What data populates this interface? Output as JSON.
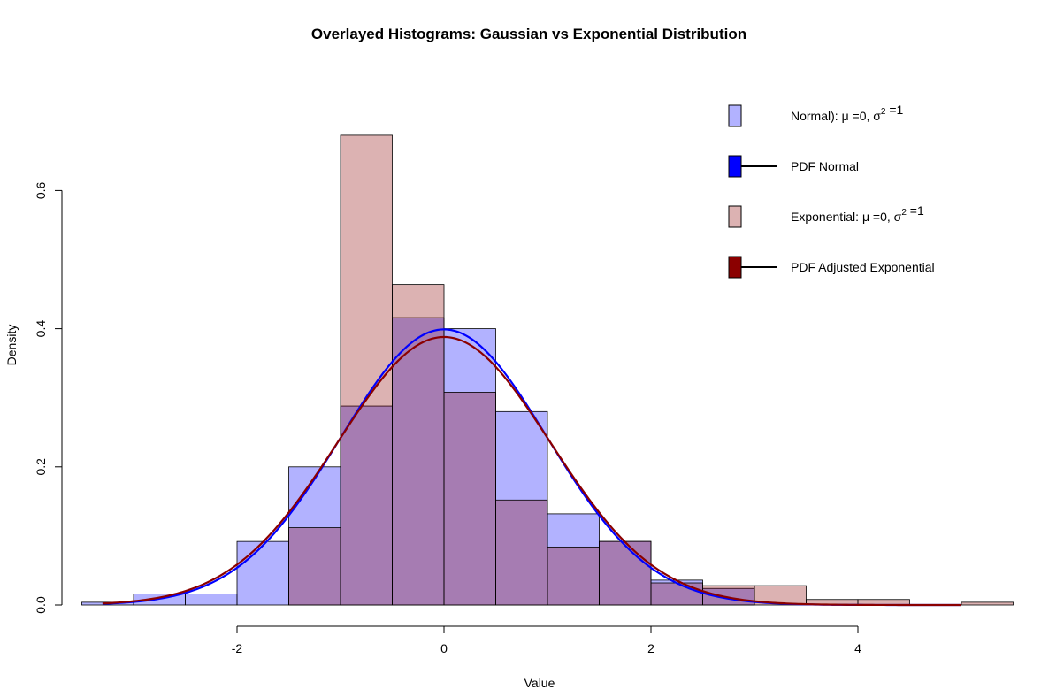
{
  "chart_data": {
    "type": "bar",
    "title": "Overlayed Histograms: Gaussian vs Exponential Distribution",
    "xlabel": "Value",
    "ylabel": "Density",
    "xlim": [
      -3.5,
      5.5
    ],
    "ylim": [
      0,
      0.7
    ],
    "x_ticks": [
      -2,
      0,
      2,
      4
    ],
    "x_tick_labels": [
      "-2",
      "0",
      "2",
      "4"
    ],
    "y_ticks": [
      0.0,
      0.2,
      0.4,
      0.6
    ],
    "y_tick_labels": [
      "0.0",
      "0.2",
      "0.4",
      "0.6"
    ],
    "grid": false,
    "legend_position": "top-right",
    "colors": {
      "normal_fill": "#0000ff",
      "exp_fill": "#8b0000",
      "normal_line": "#0000ff",
      "exp_line": "#8b0000"
    },
    "series": [
      {
        "name": "Normal",
        "kind": "histogram",
        "bin_edges": [
          -3.5,
          -3.0,
          -2.5,
          -2.0,
          -1.5,
          -1.0,
          -0.5,
          0.0,
          0.5,
          1.0,
          1.5,
          2.0,
          2.5,
          3.0
        ],
        "values": [
          0.004,
          0.016,
          0.016,
          0.092,
          0.2,
          0.288,
          0.416,
          0.4,
          0.28,
          0.132,
          0.092,
          0.036,
          0.024
        ]
      },
      {
        "name": "Exponential",
        "kind": "histogram",
        "bin_edges": [
          -1.5,
          -1.0,
          -0.5,
          0.0,
          0.5,
          1.0,
          1.5,
          2.0,
          2.5,
          3.0,
          3.5,
          4.0,
          4.5,
          5.0,
          5.5
        ],
        "values": [
          0.112,
          0.68,
          0.464,
          0.308,
          0.152,
          0.084,
          0.092,
          0.032,
          0.028,
          0.028,
          0.008,
          0.008,
          0.0,
          0.004
        ]
      },
      {
        "name": "PDF Normal",
        "kind": "density_line",
        "peak": 0.399
      },
      {
        "name": "PDF Adjusted Exponential",
        "kind": "density_line",
        "peak": 0.388
      }
    ],
    "legend": [
      {
        "kind": "box",
        "color": "normal_fill",
        "prefix": "Normal): ",
        "mu": "μ",
        "mid": " =0, ",
        "sigma": "σ",
        "sup": "2",
        "suffix": " =1"
      },
      {
        "kind": "line",
        "color": "normal_line",
        "text": "PDF Normal"
      },
      {
        "kind": "box",
        "color": "exp_fill",
        "prefix": "Exponential: ",
        "mu": "μ",
        "mid": " =0, ",
        "sigma": "σ",
        "sup": "2",
        "suffix": " =1"
      },
      {
        "kind": "line",
        "color": "exp_line",
        "text": "PDF Adjusted Exponential"
      }
    ]
  }
}
